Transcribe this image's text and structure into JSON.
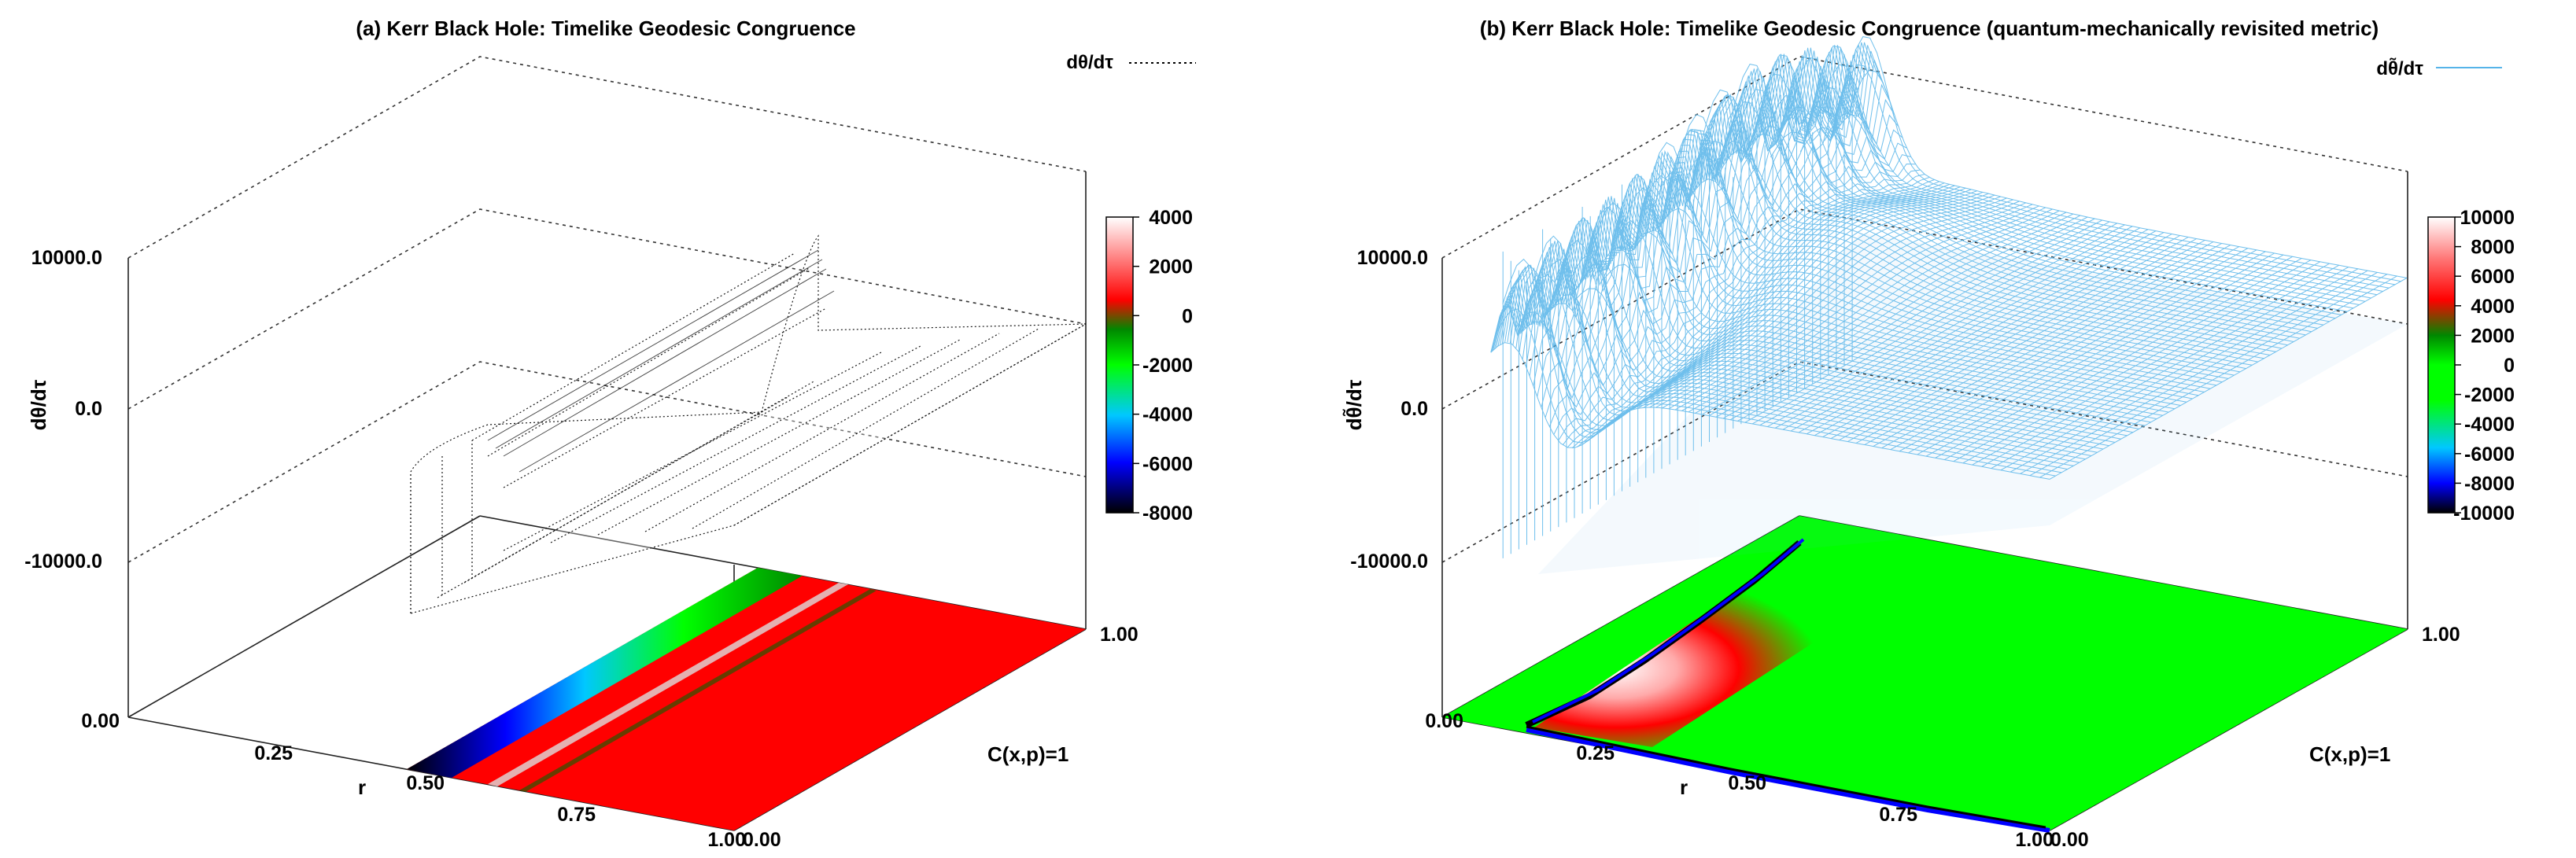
{
  "panels": [
    {
      "title": "(a) Kerr Black Hole: Timelike Geodesic Congruence",
      "legend_label": "dθ/dτ",
      "zlabel": "dθ/dτ",
      "xlabel": "r",
      "ylabel": "C(x,p)=1",
      "color": "#000000"
    },
    {
      "title": "(b) Kerr Black Hole: Timelike Geodesic Congruence (quantum-mechanically revisited metric)",
      "legend_label": "dθ̃/dτ",
      "zlabel": "dθ̃/dτ",
      "xlabel": "r",
      "ylabel": "C(x,p)=1",
      "color": "#56b4e9"
    }
  ],
  "chart_data": [
    {
      "type": "surface",
      "title": "(a) Kerr Black Hole: Timelike Geodesic Congruence",
      "xlabel": "r",
      "ylabel": "C(x,p)=1",
      "zlabel": "dθ/dτ",
      "x_ticks": [
        "0.00",
        "0.25",
        "0.50",
        "0.75",
        "1.00"
      ],
      "y_ticks": [
        "0.00",
        "1.00"
      ],
      "z_ticks": [
        "-10000.0",
        "0.0",
        "10000.0"
      ],
      "xlim": [
        0,
        1
      ],
      "ylim": [
        0,
        1
      ],
      "zlim": [
        -10000,
        10000
      ],
      "colorbar_ticks": [
        "4000",
        "2000",
        "0",
        "-2000",
        "-4000",
        "-6000",
        "-8000"
      ],
      "colorbar_range": [
        -8000,
        4000
      ],
      "series": [
        {
          "name": "dθ/dτ",
          "style": "dotted black mesh",
          "r_start": 0.5,
          "plateau": 300
        }
      ],
      "legend_position": "top-right"
    },
    {
      "type": "surface",
      "title": "(b) Kerr Black Hole: Timelike Geodesic Congruence (quantum-mechanically revisited metric)",
      "xlabel": "r",
      "ylabel": "C(x,p)=1",
      "zlabel": "dθ̃/dτ",
      "x_ticks": [
        "0.00",
        "0.25",
        "0.50",
        "0.75",
        "1.00"
      ],
      "y_ticks": [
        "0.00",
        "1.00"
      ],
      "z_ticks": [
        "-10000.0",
        "0.0",
        "10000.0"
      ],
      "xlim": [
        0,
        1
      ],
      "ylim": [
        0,
        1
      ],
      "zlim": [
        -10000,
        10000
      ],
      "colorbar_ticks": [
        "10000",
        "8000",
        "6000",
        "4000",
        "2000",
        "0",
        "-2000",
        "-4000",
        "-6000",
        "-8000",
        "-10000"
      ],
      "colorbar_range": [
        -10000,
        10000
      ],
      "series": [
        {
          "name": "dθ̃/dτ",
          "style": "light-blue mesh",
          "r_start": 0.1,
          "plateau": 1000
        }
      ],
      "legend_position": "top-right"
    }
  ]
}
